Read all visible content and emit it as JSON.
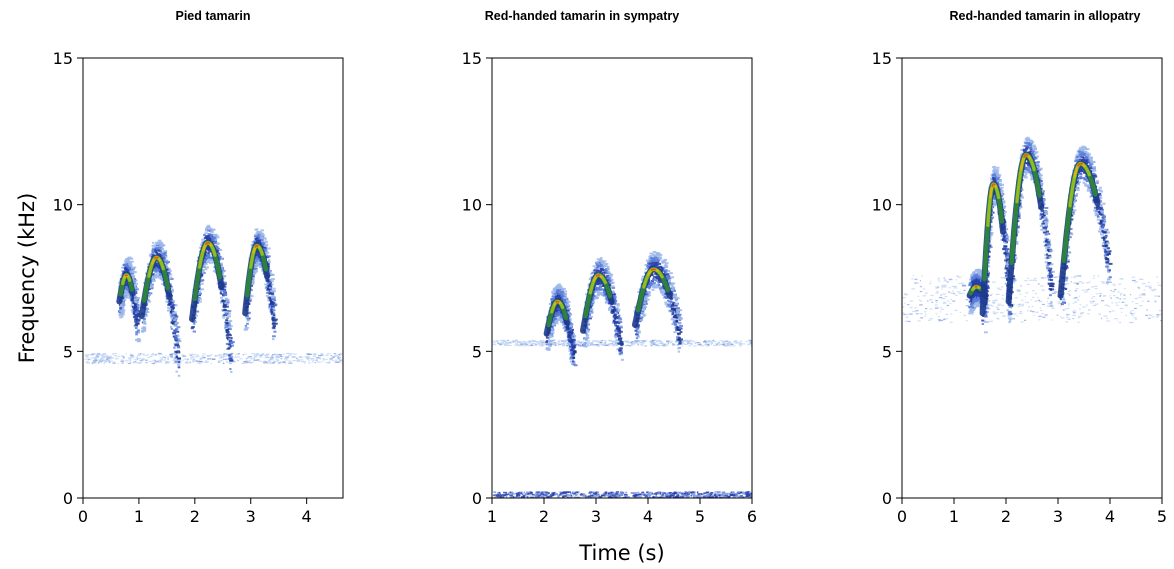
{
  "figure": {
    "shared_ylabel": "Frequency (kHz)",
    "shared_xlabel": "Time (s)"
  },
  "chart_data": [
    {
      "type": "spectrogram",
      "title": "Pied tamarin",
      "xlim": [
        0,
        4.65
      ],
      "ylim": [
        0,
        15
      ],
      "xticks": [
        0,
        1,
        2,
        3,
        4
      ],
      "yticks": [
        0,
        5,
        10,
        15
      ],
      "grid": false,
      "background_band_khz": [
        4.6,
        4.95
      ],
      "syllables": [
        {
          "start_s": 0.65,
          "end_s": 0.95,
          "start_khz": 6.7,
          "peak_khz": 7.6,
          "end_khz": 6.0
        },
        {
          "start_s": 1.05,
          "end_s": 1.68,
          "start_khz": 6.2,
          "peak_khz": 8.2,
          "end_khz": 4.8
        },
        {
          "start_s": 1.95,
          "end_s": 2.62,
          "start_khz": 6.1,
          "peak_khz": 8.7,
          "end_khz": 4.9
        },
        {
          "start_s": 2.9,
          "end_s": 3.4,
          "start_khz": 6.3,
          "peak_khz": 8.6,
          "end_khz": 6.0
        }
      ]
    },
    {
      "type": "spectrogram",
      "title": "Red-handed tamarin in sympatry",
      "xlim": [
        1,
        6
      ],
      "ylim": [
        0,
        15
      ],
      "xticks": [
        1,
        2,
        3,
        4,
        5,
        6
      ],
      "yticks": [
        0,
        5,
        10,
        15
      ],
      "grid": false,
      "background_band_khz": [
        5.2,
        5.4
      ],
      "low_band_khz": [
        0,
        0.2
      ],
      "syllables": [
        {
          "start_s": 2.05,
          "end_s": 2.55,
          "start_khz": 5.6,
          "peak_khz": 6.7,
          "end_khz": 4.9
        },
        {
          "start_s": 2.75,
          "end_s": 3.45,
          "start_khz": 5.7,
          "peak_khz": 7.6,
          "end_khz": 5.3
        },
        {
          "start_s": 3.75,
          "end_s": 4.6,
          "start_khz": 5.9,
          "peak_khz": 7.8,
          "end_khz": 5.5
        }
      ]
    },
    {
      "type": "spectrogram",
      "title": "Red-handed tamarin in allopatry",
      "xlim": [
        0,
        5
      ],
      "ylim": [
        0,
        15
      ],
      "xticks": [
        0,
        1,
        2,
        3,
        4,
        5
      ],
      "yticks": [
        0,
        5,
        10,
        15
      ],
      "grid": false,
      "background_band_khz": [
        6.0,
        7.6
      ],
      "syllables": [
        {
          "start_s": 1.3,
          "end_s": 1.6,
          "start_khz": 6.9,
          "peak_khz": 7.2,
          "end_khz": 6.9
        },
        {
          "start_s": 1.55,
          "end_s": 2.05,
          "start_khz": 6.3,
          "peak_khz": 10.7,
          "end_khz": 6.6
        },
        {
          "start_s": 2.05,
          "end_s": 2.85,
          "start_khz": 6.7,
          "peak_khz": 11.7,
          "end_khz": 7.2
        },
        {
          "start_s": 3.05,
          "end_s": 3.95,
          "start_khz": 6.9,
          "peak_khz": 11.4,
          "end_khz": 8.0
        }
      ]
    }
  ]
}
